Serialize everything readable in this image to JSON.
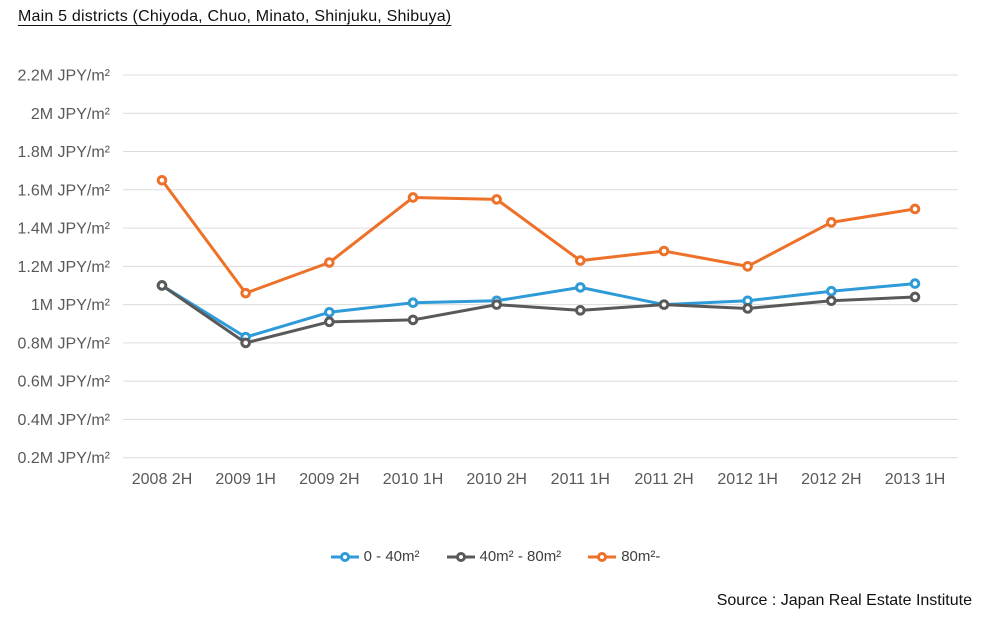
{
  "title": "Main 5 districts (Chiyoda, Chuo, Minato, Shinjuku, Shibuya)",
  "source": "Source : Japan Real Estate Institute",
  "colors": {
    "grid": "#dcdcdc",
    "axis_text": "#595959",
    "series_blue": "#2e9bd8",
    "series_gray": "#595959",
    "series_orange": "#ed7128"
  },
  "chart_data": {
    "type": "line",
    "title": "Main 5 districts (Chiyoda, Chuo, Minato, Shinjuku, Shibuya)",
    "xlabel": "",
    "ylabel": "M JPY/m²",
    "ylim": [
      0.2,
      2.2
    ],
    "grid": true,
    "legend_position": "bottom",
    "categories": [
      "2008 2H",
      "2009 1H",
      "2009 2H",
      "2010 1H",
      "2010 2H",
      "2011 1H",
      "2011 2H",
      "2012 1H",
      "2012 2H",
      "2013 1H"
    ],
    "yticks": [
      {
        "value": 2.2,
        "label": "2.2M JPY/m²"
      },
      {
        "value": 2.0,
        "label": "2M JPY/m²"
      },
      {
        "value": 1.8,
        "label": "1.8M JPY/m²"
      },
      {
        "value": 1.6,
        "label": "1.6M JPY/m²"
      },
      {
        "value": 1.4,
        "label": "1.4M JPY/m²"
      },
      {
        "value": 1.2,
        "label": "1.2M JPY/m²"
      },
      {
        "value": 1.0,
        "label": "1M JPY/m²"
      },
      {
        "value": 0.8,
        "label": "0.8M JPY/m²"
      },
      {
        "value": 0.6,
        "label": "0.6M JPY/m²"
      },
      {
        "value": 0.4,
        "label": "0.4M JPY/m²"
      },
      {
        "value": 0.2,
        "label": "0.2M JPY/m²"
      }
    ],
    "series": [
      {
        "name": "0 - 40m²",
        "color": "#2e9bd8",
        "values": [
          1.1,
          0.83,
          0.96,
          1.01,
          1.02,
          1.09,
          1.0,
          1.02,
          1.07,
          1.11
        ]
      },
      {
        "name": "40m² - 80m²",
        "color": "#595959",
        "values": [
          1.1,
          0.8,
          0.91,
          0.92,
          1.0,
          0.97,
          1.0,
          0.98,
          1.02,
          1.04
        ]
      },
      {
        "name": "80m²-",
        "color": "#ed7128",
        "values": [
          1.65,
          1.06,
          1.22,
          1.56,
          1.55,
          1.23,
          1.28,
          1.2,
          1.43,
          1.5
        ]
      }
    ]
  }
}
